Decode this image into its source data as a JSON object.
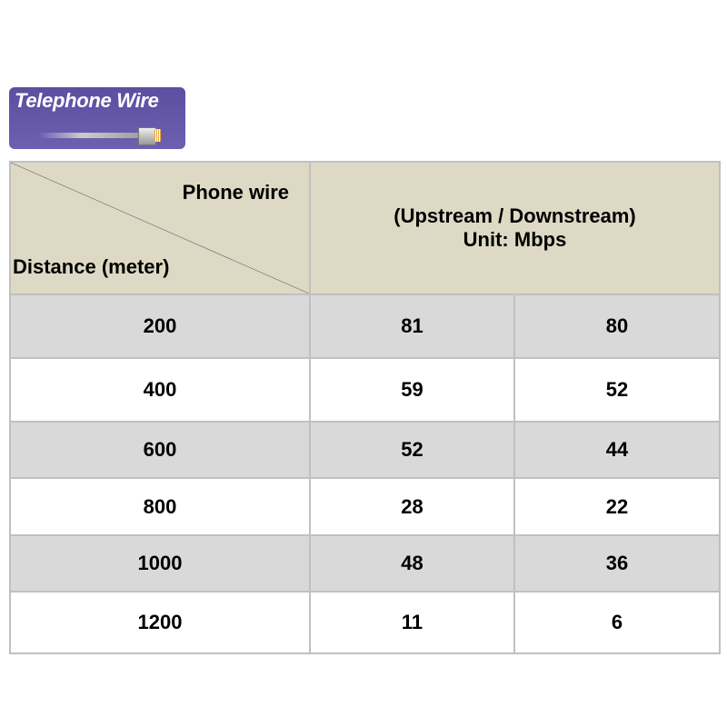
{
  "badge": {
    "title": "Telephone Wire",
    "icon": "telephone-cable-plug-icon"
  },
  "table": {
    "corner_top": "Phone wire",
    "corner_bottom": "Distance (meter)",
    "header_line1": "(Upstream / Downstream)",
    "header_line2": "Unit: Mbps",
    "rows": [
      {
        "distance": "200",
        "upstream": "81",
        "downstream": "80"
      },
      {
        "distance": "400",
        "upstream": "59",
        "downstream": "52"
      },
      {
        "distance": "600",
        "upstream": "52",
        "downstream": "44"
      },
      {
        "distance": "800",
        "upstream": "28",
        "downstream": "22"
      },
      {
        "distance": "1000",
        "upstream": "48",
        "downstream": "36"
      },
      {
        "distance": "1200",
        "upstream": "11",
        "downstream": "6"
      }
    ]
  },
  "colors": {
    "badge": "#6256a6",
    "header": "#ddd9c4",
    "stripe": "#d9d9d9"
  }
}
